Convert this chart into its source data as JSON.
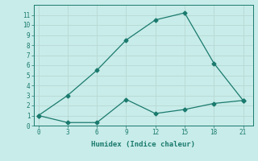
{
  "xlabel": "Humidex (Indice chaleur)",
  "line1_x": [
    0,
    3,
    6,
    9,
    12,
    15,
    18,
    21
  ],
  "line1_y": [
    1.0,
    3.0,
    5.5,
    8.5,
    10.5,
    11.2,
    6.2,
    2.5
  ],
  "line2_x": [
    0,
    3,
    6,
    9,
    12,
    15,
    18,
    21
  ],
  "line2_y": [
    1.0,
    0.3,
    0.3,
    2.6,
    1.2,
    1.6,
    2.2,
    2.5
  ],
  "line_color": "#1a7a6e",
  "bg_color": "#c8ece9",
  "grid_color": "#b8d8d4",
  "xlim": [
    -0.5,
    22
  ],
  "ylim": [
    0,
    12
  ],
  "xticks": [
    0,
    3,
    6,
    9,
    12,
    15,
    18,
    21
  ],
  "yticks": [
    0,
    1,
    2,
    3,
    4,
    5,
    6,
    7,
    8,
    9,
    10,
    11
  ],
  "marker": "D",
  "markersize": 2.5,
  "linewidth": 0.9,
  "tick_fontsize": 5.5,
  "xlabel_fontsize": 6.5
}
